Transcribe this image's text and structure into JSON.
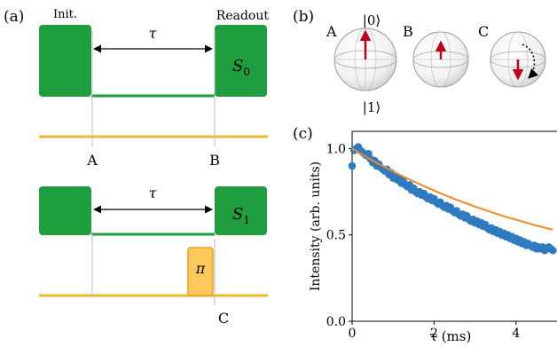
{
  "panel_a": {
    "label": "(a)",
    "init_label": "Init.",
    "readout_label": "Readout",
    "tau_label": "τ",
    "signal_s0": "S",
    "signal_s0_sub": "0",
    "signal_s1": "S",
    "signal_s1_sub": "1",
    "pi_label": "π",
    "marker_a": "A",
    "marker_b": "B",
    "marker_c": "C",
    "colors": {
      "laser": "#1e9e3e",
      "mw": "#f2b632",
      "pi_fill": "#ffc95c"
    }
  },
  "panel_b": {
    "label": "(b)",
    "state_top": "|0⟩",
    "state_bottom": "|1⟩",
    "spheres": [
      {
        "label": "A",
        "arrow": "up-full"
      },
      {
        "label": "B",
        "arrow": "up-short"
      },
      {
        "label": "C",
        "arrow": "down-short"
      }
    ],
    "colors": {
      "arrow": "#c0001a"
    }
  },
  "panel_c": {
    "label": "(c)",
    "ylabel": "Intensity (arb. units)",
    "xlabel": "τ (ms)"
  },
  "chart_data": {
    "type": "scatter",
    "xlabel": "τ (ms)",
    "ylabel": "Intensity (arb. units)",
    "xlim": [
      0,
      5
    ],
    "ylim": [
      0,
      1.1
    ],
    "xticks": [
      "0",
      "2",
      "4"
    ],
    "yticks": [
      "0.0",
      "0.5",
      "1.0"
    ],
    "series": [
      {
        "kind": "points",
        "color": "#2f7bbf",
        "x": [
          0.0,
          0.05,
          0.1,
          0.15,
          0.2,
          0.25,
          0.3,
          0.35,
          0.4,
          0.45,
          0.5,
          0.55,
          0.6,
          0.65,
          0.7,
          0.75,
          0.8,
          0.85,
          0.9,
          0.95,
          1.0,
          1.05,
          1.1,
          1.15,
          1.2,
          1.25,
          1.3,
          1.35,
          1.4,
          1.45,
          1.5,
          1.55,
          1.6,
          1.65,
          1.7,
          1.75,
          1.8,
          1.85,
          1.9,
          1.95,
          2.0,
          2.05,
          2.1,
          2.15,
          2.2,
          2.25,
          2.3,
          2.35,
          2.4,
          2.45,
          2.5,
          2.55,
          2.6,
          2.65,
          2.7,
          2.75,
          2.8,
          2.85,
          2.9,
          2.95,
          3.0,
          3.05,
          3.1,
          3.15,
          3.2,
          3.25,
          3.3,
          3.35,
          3.4,
          3.45,
          3.5,
          3.55,
          3.6,
          3.65,
          3.7,
          3.75,
          3.8,
          3.85,
          3.9,
          3.95,
          4.0,
          4.05,
          4.1,
          4.15,
          4.2,
          4.25,
          4.3,
          4.35,
          4.4,
          4.45,
          4.5,
          4.55,
          4.6,
          4.65,
          4.7,
          4.75,
          4.8,
          4.85,
          4.9
        ],
        "y": [
          0.9,
          0.99,
          1.0,
          1.01,
          0.99,
          0.98,
          0.97,
          0.96,
          0.97,
          0.94,
          0.92,
          0.93,
          0.9,
          0.91,
          0.89,
          0.88,
          0.87,
          0.88,
          0.85,
          0.86,
          0.83,
          0.84,
          0.82,
          0.83,
          0.8,
          0.81,
          0.79,
          0.78,
          0.79,
          0.76,
          0.77,
          0.75,
          0.74,
          0.75,
          0.73,
          0.74,
          0.72,
          0.71,
          0.72,
          0.7,
          0.71,
          0.69,
          0.68,
          0.69,
          0.67,
          0.66,
          0.67,
          0.65,
          0.66,
          0.64,
          0.63,
          0.64,
          0.62,
          0.61,
          0.62,
          0.6,
          0.61,
          0.59,
          0.58,
          0.59,
          0.57,
          0.58,
          0.56,
          0.57,
          0.55,
          0.56,
          0.54,
          0.53,
          0.54,
          0.52,
          0.53,
          0.51,
          0.52,
          0.5,
          0.51,
          0.49,
          0.5,
          0.48,
          0.49,
          0.47,
          0.48,
          0.46,
          0.47,
          0.45,
          0.46,
          0.44,
          0.45,
          0.44,
          0.43,
          0.44,
          0.42,
          0.43,
          0.42,
          0.43,
          0.41,
          0.42,
          0.43,
          0.42,
          0.41
        ]
      },
      {
        "kind": "fit",
        "color": "#f08a24",
        "x": [
          0.0,
          0.25,
          0.5,
          0.75,
          1.0,
          1.25,
          1.5,
          1.75,
          2.0,
          2.25,
          2.5,
          2.75,
          3.0,
          3.25,
          3.5,
          3.75,
          4.0,
          4.25,
          4.5,
          4.75,
          4.9
        ],
        "y": [
          1.0,
          0.965,
          0.931,
          0.899,
          0.868,
          0.838,
          0.81,
          0.783,
          0.757,
          0.732,
          0.708,
          0.686,
          0.664,
          0.644,
          0.624,
          0.605,
          0.588,
          0.571,
          0.554,
          0.539,
          0.53
        ]
      }
    ]
  }
}
